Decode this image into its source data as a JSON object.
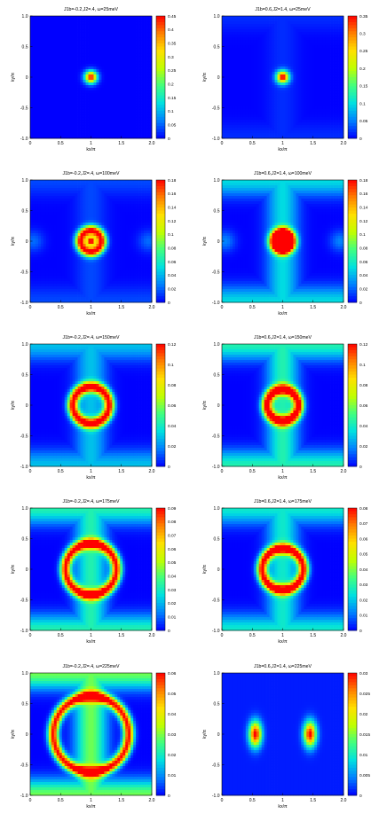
{
  "figure": {
    "xlabel": "kx/π",
    "ylabel": "ky/π",
    "x_ticks": [
      "0",
      "0.5",
      "1",
      "1.5",
      "2.0"
    ],
    "y_ticks": [
      "1.0",
      "0.5",
      "0",
      "-0.5",
      "-1.0"
    ],
    "colormap": [
      "#0000ff",
      "#0080ff",
      "#00e0e0",
      "#40ff80",
      "#c0ff00",
      "#ffe000",
      "#ff8000",
      "#ff0000"
    ]
  },
  "chart_data": [
    {
      "type": "heatmap",
      "title": "J1b=-0.2,J2=.4, ω=25meV",
      "xlabel": "kx/π",
      "ylabel": "ky/π",
      "xlim": [
        0,
        2
      ],
      "ylim": [
        -1,
        1
      ],
      "colorbar_ticks": [
        "0.45",
        "0.4",
        "0.35",
        "0.3",
        "0.25",
        "0.2",
        "0.15",
        "0.1",
        "0.05",
        "0"
      ],
      "colorbar_max": 0.45,
      "pattern": "small peak at (1,0)",
      "peak_radius": 0.07,
      "ring_radius": 0,
      "edge_level": 0.0,
      "side_lobe": 0.0
    },
    {
      "type": "heatmap",
      "title": "J1b=0.6,J2=1.4, ω=25meV",
      "xlabel": "kx/π",
      "ylabel": "ky/π",
      "xlim": [
        0,
        2
      ],
      "ylim": [
        -1,
        1
      ],
      "colorbar_ticks": [
        "0.35",
        "0.3",
        "0.25",
        "0.2",
        "0.15",
        "0.1",
        "0.05",
        "0"
      ],
      "colorbar_max": 0.35,
      "pattern": "small peak at (1,0)",
      "peak_radius": 0.07,
      "ring_radius": 0,
      "edge_level": 0.06,
      "side_lobe": 0.0
    },
    {
      "type": "heatmap",
      "title": "J1b=-0.2,J2=.4, ω=100meV",
      "xlabel": "kx/π",
      "ylabel": "ky/π",
      "xlim": [
        0,
        2
      ],
      "ylim": [
        -1,
        1
      ],
      "colorbar_ticks": [
        "0.18",
        "0.16",
        "0.14",
        "0.12",
        "0.1",
        "0.08",
        "0.06",
        "0.04",
        "0.02",
        "0"
      ],
      "colorbar_max": 0.18,
      "pattern": "ring around (1,0)",
      "peak_radius": 0.05,
      "ring_radius": 0.17,
      "edge_level": 0.1,
      "side_lobe": 0.12
    },
    {
      "type": "heatmap",
      "title": "J1b=0.6,J2=1.4, ω=100meV",
      "xlabel": "kx/π",
      "ylabel": "ky/π",
      "xlim": [
        0,
        2
      ],
      "ylim": [
        -1,
        1
      ],
      "colorbar_ticks": [
        "0.18",
        "0.16",
        "0.14",
        "0.12",
        "0.1",
        "0.08",
        "0.06",
        "0.04",
        "0.02",
        "0"
      ],
      "colorbar_max": 0.18,
      "pattern": "ring around (1,0), bright corners",
      "peak_radius": 0.05,
      "ring_radius": 0.15,
      "edge_level": 0.35,
      "side_lobe": 0.15
    },
    {
      "type": "heatmap",
      "title": "J1b=-0.2,J2=.4, ω=150meV",
      "xlabel": "kx/π",
      "ylabel": "ky/π",
      "xlim": [
        0,
        2
      ],
      "ylim": [
        -1,
        1
      ],
      "colorbar_ticks": [
        "0.12",
        "0.1",
        "0.08",
        "0.06",
        "0.04",
        "0.02",
        "0"
      ],
      "colorbar_max": 0.12,
      "pattern": "ring around (1,0)",
      "peak_radius": 0,
      "ring_radius": 0.3,
      "edge_level": 0.3,
      "side_lobe": 0.0
    },
    {
      "type": "heatmap",
      "title": "J1b=0.6,J2=1.4, ω=150meV",
      "xlabel": "kx/π",
      "ylabel": "ky/π",
      "xlim": [
        0,
        2
      ],
      "ylim": [
        -1,
        1
      ],
      "colorbar_ticks": [
        "0.12",
        "0.1",
        "0.08",
        "0.06",
        "0.04",
        "0.02",
        "0"
      ],
      "colorbar_max": 0.12,
      "pattern": "ring around (1,0), bright edges",
      "peak_radius": 0,
      "ring_radius": 0.26,
      "edge_level": 0.45,
      "side_lobe": 0.0
    },
    {
      "type": "heatmap",
      "title": "J1b=-0.2,J2=.4, ω=175meV",
      "xlabel": "kx/π",
      "ylabel": "ky/π",
      "xlim": [
        0,
        2
      ],
      "ylim": [
        -1,
        1
      ],
      "colorbar_ticks": [
        "0.09",
        "0.08",
        "0.07",
        "0.06",
        "0.05",
        "0.04",
        "0.03",
        "0.02",
        "0.01",
        "0"
      ],
      "colorbar_max": 0.09,
      "pattern": "large ring around (1,0)",
      "peak_radius": 0,
      "ring_radius": 0.42,
      "edge_level": 0.45,
      "side_lobe": 0.0
    },
    {
      "type": "heatmap",
      "title": "J1b=0.6,J2=1.4, ω=175meV",
      "xlabel": "kx/π",
      "ylabel": "ky/π",
      "xlim": [
        0,
        2
      ],
      "ylim": [
        -1,
        1
      ],
      "colorbar_ticks": [
        "0.08",
        "0.07",
        "0.06",
        "0.05",
        "0.04",
        "0.03",
        "0.02",
        "0.01",
        "0"
      ],
      "colorbar_max": 0.08,
      "pattern": "square ring around (1,0)",
      "peak_radius": 0,
      "ring_radius": 0.34,
      "edge_level": 0.4,
      "side_lobe": 0.0
    },
    {
      "type": "heatmap",
      "title": "J1b=-0.2,J2=.4, ω=225meV",
      "xlabel": "kx/π",
      "ylabel": "ky/π",
      "xlim": [
        0,
        2
      ],
      "ylim": [
        -1,
        1
      ],
      "colorbar_ticks": [
        "0.06",
        "0.05",
        "0.04",
        "0.03",
        "0.02",
        "0.01",
        "0"
      ],
      "colorbar_max": 0.06,
      "pattern": "broad intensity away from (1,0)",
      "peak_radius": 0,
      "ring_radius": 0.62,
      "edge_level": 0.6,
      "side_lobe": 0.0
    },
    {
      "type": "heatmap",
      "title": "J1b=0.6,J2=1.4, ω=225meV",
      "xlabel": "kx/π",
      "ylabel": "ky/π",
      "xlim": [
        0,
        2
      ],
      "ylim": [
        -1,
        1
      ],
      "colorbar_ticks": [
        "0.03",
        "0.025",
        "0.02",
        "0.015",
        "0.01",
        "0.005",
        "0"
      ],
      "colorbar_max": 0.03,
      "pattern": "two lobes at kx=0.55 and 1.45",
      "peak_radius": 0,
      "ring_radius": 0,
      "edge_level": 0.1,
      "side_lobe": 0.0,
      "lobes_x": [
        0.55,
        1.45
      ]
    }
  ]
}
